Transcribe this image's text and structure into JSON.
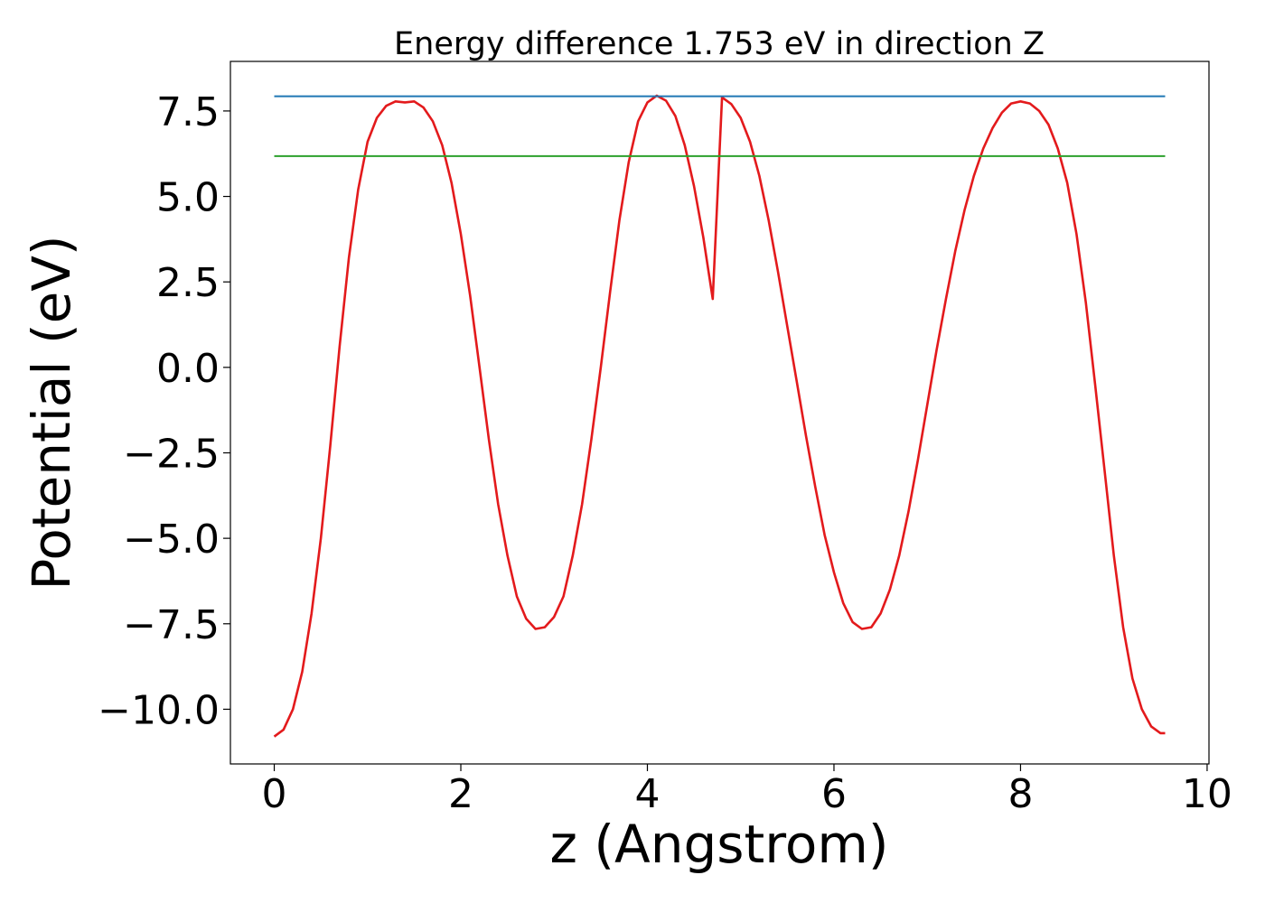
{
  "chart_data": {
    "type": "line",
    "title": "Energy difference 1.753 eV in direction Z",
    "xlabel": "z (Angstrom)",
    "ylabel": "Potential (eV)",
    "xlim": [
      -0.47,
      10.02
    ],
    "ylim": [
      -11.6,
      8.95
    ],
    "x_ticks": [
      0,
      2,
      4,
      6,
      8,
      10
    ],
    "x_tick_labels": [
      "0",
      "2",
      "4",
      "6",
      "8",
      "10"
    ],
    "y_ticks": [
      -10.0,
      -7.5,
      -5.0,
      -2.5,
      0.0,
      2.5,
      5.0,
      7.5
    ],
    "y_tick_labels": [
      "−10.0",
      "−7.5",
      "−5.0",
      "−2.5",
      "0.0",
      "2.5",
      "5.0",
      "7.5"
    ],
    "grid": false,
    "legend": "none",
    "series": [
      {
        "kind": "curve",
        "color": "#e31a1c",
        "x": [
          0.0,
          0.1,
          0.2,
          0.3,
          0.4,
          0.5,
          0.6,
          0.7,
          0.8,
          0.9,
          1.0,
          1.1,
          1.2,
          1.3,
          1.4,
          1.5,
          1.6,
          1.7,
          1.8,
          1.9,
          2.0,
          2.1,
          2.2,
          2.3,
          2.4,
          2.5,
          2.6,
          2.7,
          2.8,
          2.9,
          3.0,
          3.1,
          3.2,
          3.3,
          3.4,
          3.5,
          3.6,
          3.7,
          3.8,
          3.9,
          4.0,
          4.1,
          4.2,
          4.3,
          4.4,
          4.5,
          4.6,
          4.7,
          4.8,
          4.9,
          5.0,
          5.1,
          5.2,
          5.3,
          5.4,
          5.5,
          5.6,
          5.7,
          5.8,
          5.9,
          6.0,
          6.1,
          6.2,
          6.3,
          6.4,
          6.5,
          6.6,
          6.7,
          6.8,
          6.9,
          7.0,
          7.1,
          7.2,
          7.3,
          7.4,
          7.5,
          7.6,
          7.7,
          7.8,
          7.9,
          8.0,
          8.1,
          8.2,
          8.3,
          8.4,
          8.5,
          8.6,
          8.7,
          8.8,
          8.9,
          9.0,
          9.1,
          9.2,
          9.3,
          9.4,
          9.5,
          9.55
        ],
        "y": [
          -10.8,
          -10.6,
          -10.0,
          -8.9,
          -7.2,
          -5.0,
          -2.3,
          0.6,
          3.2,
          5.2,
          6.6,
          7.3,
          7.65,
          7.78,
          7.75,
          7.78,
          7.6,
          7.2,
          6.5,
          5.4,
          3.9,
          2.1,
          0.0,
          -2.1,
          -4.0,
          -5.5,
          -6.7,
          -7.35,
          -7.65,
          -7.6,
          -7.3,
          -6.7,
          -5.5,
          -4.0,
          -2.1,
          0.0,
          2.2,
          4.3,
          6.0,
          7.2,
          7.75,
          7.95,
          7.8,
          7.35,
          6.5,
          5.3,
          3.8,
          2.0,
          7.9,
          7.7,
          7.3,
          6.6,
          5.6,
          4.3,
          2.8,
          1.2,
          -0.4,
          -2.0,
          -3.5,
          -4.9,
          -6.0,
          -6.9,
          -7.45,
          -7.65,
          -7.6,
          -7.2,
          -6.5,
          -5.5,
          -4.2,
          -2.7,
          -1.1,
          0.5,
          2.0,
          3.4,
          4.6,
          5.6,
          6.4,
          7.0,
          7.45,
          7.72,
          7.78,
          7.72,
          7.5,
          7.1,
          6.4,
          5.4,
          3.9,
          1.9,
          -0.5,
          -3.0,
          -5.5,
          -7.6,
          -9.1,
          -10.0,
          -10.5,
          -10.7,
          -10.7
        ]
      },
      {
        "kind": "hline",
        "color": "#1f77b4",
        "x": [
          0.0,
          9.55
        ],
        "y": [
          7.93,
          7.93
        ]
      },
      {
        "kind": "hline",
        "color": "#2ca02c",
        "x": [
          0.0,
          9.55
        ],
        "y": [
          6.18,
          6.18
        ]
      }
    ]
  }
}
